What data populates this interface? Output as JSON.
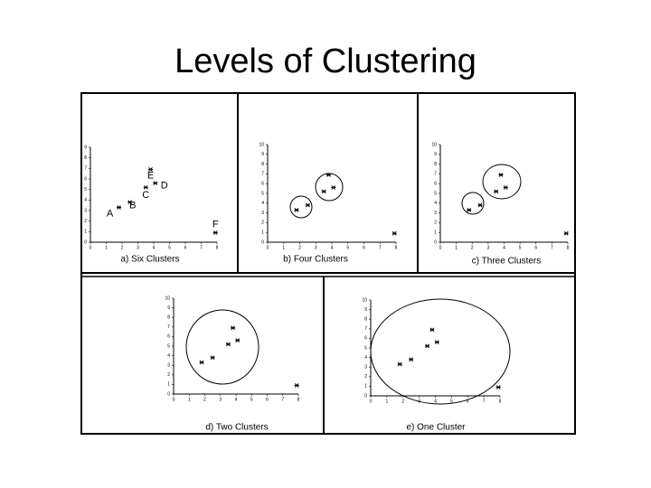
{
  "title": "Levels of Clustering",
  "chart_data": [
    {
      "type": "scatter",
      "title": "a)  Six Clusters",
      "x": [
        1.8,
        2.5,
        3.5,
        4.1,
        3.8,
        7.9
      ],
      "values": [
        3.3,
        3.8,
        5.2,
        5.6,
        6.9,
        0.9
      ],
      "point_labels": [
        "A",
        "B",
        "C",
        "D",
        "E",
        "F"
      ],
      "xlim": [
        0,
        8
      ],
      "ylim": [
        0,
        9
      ],
      "xticks": [
        0,
        1,
        2,
        3,
        4,
        5,
        6,
        7,
        8
      ],
      "yticks": [
        0,
        1,
        2,
        3,
        4,
        5,
        6,
        7,
        8,
        9
      ],
      "color": "#000000"
    },
    {
      "type": "scatter",
      "title": "b)  Four Clusters",
      "x": [
        1.8,
        2.5,
        3.5,
        4.1,
        3.8,
        7.9
      ],
      "values": [
        3.3,
        3.8,
        5.2,
        5.6,
        6.9,
        0.9
      ],
      "xlim": [
        0,
        8
      ],
      "ylim": [
        0,
        10
      ],
      "xticks": [
        0,
        1,
        2,
        3,
        4,
        5,
        6,
        7,
        8
      ],
      "yticks": [
        0,
        1,
        2,
        3,
        4,
        5,
        6,
        7,
        8,
        9,
        10
      ],
      "color": "#000000"
    },
    {
      "type": "scatter",
      "title": "c)  Three Clusters",
      "x": [
        1.8,
        2.5,
        3.5,
        4.1,
        3.8,
        7.9
      ],
      "values": [
        3.3,
        3.8,
        5.2,
        5.6,
        6.9,
        0.9
      ],
      "xlim": [
        0,
        8
      ],
      "ylim": [
        0,
        10
      ],
      "xticks": [
        0,
        1,
        2,
        3,
        4,
        5,
        6,
        7,
        8
      ],
      "yticks": [
        0,
        1,
        2,
        3,
        4,
        5,
        6,
        7,
        8,
        9,
        10
      ],
      "color": "#000000"
    },
    {
      "type": "scatter",
      "title": "d)  Two Clusters",
      "x": [
        1.8,
        2.5,
        3.5,
        4.1,
        3.8,
        7.9
      ],
      "values": [
        3.3,
        3.8,
        5.2,
        5.6,
        6.9,
        0.9
      ],
      "xlim": [
        0,
        8
      ],
      "ylim": [
        0,
        10
      ],
      "xticks": [
        0,
        1,
        2,
        3,
        4,
        5,
        6,
        7,
        8
      ],
      "yticks": [
        0,
        1,
        2,
        3,
        4,
        5,
        6,
        7,
        8,
        9,
        10
      ],
      "color": "#000000"
    },
    {
      "type": "scatter",
      "title": "e)  One Cluster",
      "x": [
        1.8,
        2.5,
        3.5,
        4.1,
        3.8,
        7.9
      ],
      "values": [
        3.3,
        3.8,
        5.2,
        5.6,
        6.9,
        0.9
      ],
      "xlim": [
        0,
        8
      ],
      "ylim": [
        0,
        10
      ],
      "xticks": [
        0,
        1,
        2,
        3,
        4,
        5,
        6,
        7,
        8
      ],
      "yticks": [
        0,
        1,
        2,
        3,
        4,
        5,
        6,
        7,
        8,
        9,
        10
      ],
      "color": "#000000"
    }
  ]
}
